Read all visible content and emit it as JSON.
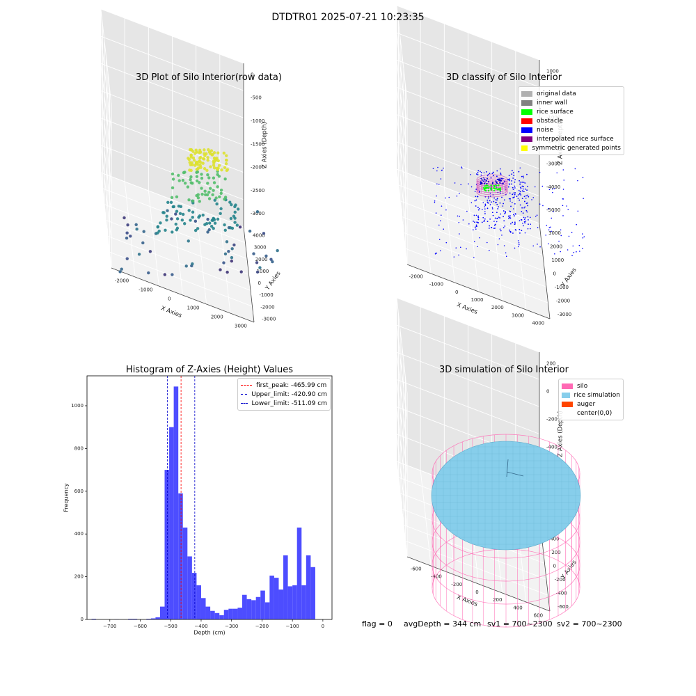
{
  "suptitle": "DTDTR01 2025-07-21 10:23:35",
  "colors": {
    "hist_bar": "#4d4dff",
    "silo": "#ff69b4",
    "rice": "#87ceeb",
    "auger": "#ff4500",
    "original": "#b0b0b0",
    "inner_wall": "#808080",
    "rice_surface": "#00ff00",
    "obstacle": "#ff0000",
    "noise": "#0000ff",
    "interp": "#800080",
    "symmetric": "#ffff00"
  },
  "footer": {
    "flag": "flag = 0",
    "avg_depth": "avgDepth = 344 cm",
    "sv1": "sv1 = 700~2300",
    "sv2": "sv2 = 700~2300"
  },
  "chart_data": [
    {
      "type": "scatter",
      "title": "3D Plot of Silo Interior(row data)",
      "xlabel": "X Axies",
      "ylabel": "Y Axies",
      "zlabel": "Z Axies (Depth)",
      "xticks": [
        "-2000",
        "-1000",
        "0",
        "1000",
        "2000",
        "3000"
      ],
      "yticks": [
        "-3000",
        "-2000",
        "-1000",
        "0",
        "1000",
        "2000",
        "3000",
        "4000"
      ],
      "zticks": [
        "0",
        "-500",
        "-1000",
        "-1500",
        "-2000",
        "-2500",
        "-3000"
      ]
    },
    {
      "type": "scatter",
      "title": "3D classify of Silo Interior",
      "xlabel": "X Axies",
      "ylabel": "Y Axies",
      "zlabel": "Z Axies (Depth)",
      "xticks": [
        "-2000",
        "-1000",
        "0",
        "1000",
        "2000",
        "3000",
        "4000"
      ],
      "yticks": [
        "-3000",
        "-2000",
        "-1000",
        "0",
        "1000",
        "2000",
        "3000"
      ],
      "zticks": [
        "1000",
        "0",
        "-1000",
        "-2000",
        "-3000",
        "-4000",
        "-5000"
      ],
      "legend": [
        "original data",
        "inner wall",
        "rice surface",
        "obstacle",
        "noise",
        "interpolated rice surface",
        "symmetric generated points"
      ],
      "legend_position": "top-right"
    },
    {
      "type": "bar",
      "title": "Histogram of Z-Axies (Height) Values",
      "xlabel": "Depth (cm)",
      "ylabel": "Frequency",
      "xlim": [
        -775,
        30
      ],
      "ylim": [
        0,
        1140
      ],
      "xticks": [
        -700,
        -600,
        -500,
        -400,
        -300,
        -200,
        -100,
        0
      ],
      "yticks": [
        0,
        200,
        400,
        600,
        800,
        1000
      ],
      "bin_start": -760,
      "bin_width": 15,
      "values": [
        3,
        0,
        0,
        0,
        0,
        1,
        0,
        0,
        3,
        3,
        0,
        0,
        3,
        5,
        10,
        60,
        700,
        900,
        1090,
        590,
        430,
        295,
        218,
        160,
        100,
        60,
        40,
        30,
        20,
        45,
        50,
        50,
        55,
        115,
        95,
        90,
        105,
        135,
        80,
        205,
        195,
        140,
        300,
        155,
        160,
        430,
        160,
        300,
        245
      ],
      "lines": [
        {
          "name": "first_peak: -465.99 cm",
          "x": -465.99,
          "color": "#ff0000"
        },
        {
          "name": "Upper_limit: -420.90 cm",
          "x": -420.9,
          "color": "#0000cc"
        },
        {
          "name": "Lower_limit: -511.09 cm",
          "x": -511.09,
          "color": "#0000cc"
        }
      ],
      "legend_position": "top-right"
    },
    {
      "type": "scatter",
      "title": "3D simulation of Silo Interior",
      "xlabel": "X Axies",
      "ylabel": "Y Axies",
      "zlabel": "Z Axies (Depth)",
      "xticks": [
        "-600",
        "-400",
        "-200",
        "0",
        "200",
        "400",
        "600"
      ],
      "yticks": [
        "-600",
        "-400",
        "-200",
        "0",
        "200",
        "400",
        "600"
      ],
      "zticks": [
        "200",
        "0",
        "-200",
        "-400",
        "-600",
        "-800"
      ],
      "legend": [
        "silo",
        "rice simulation",
        "auger",
        "center(0,0)"
      ],
      "legend_position": "top-right"
    }
  ]
}
